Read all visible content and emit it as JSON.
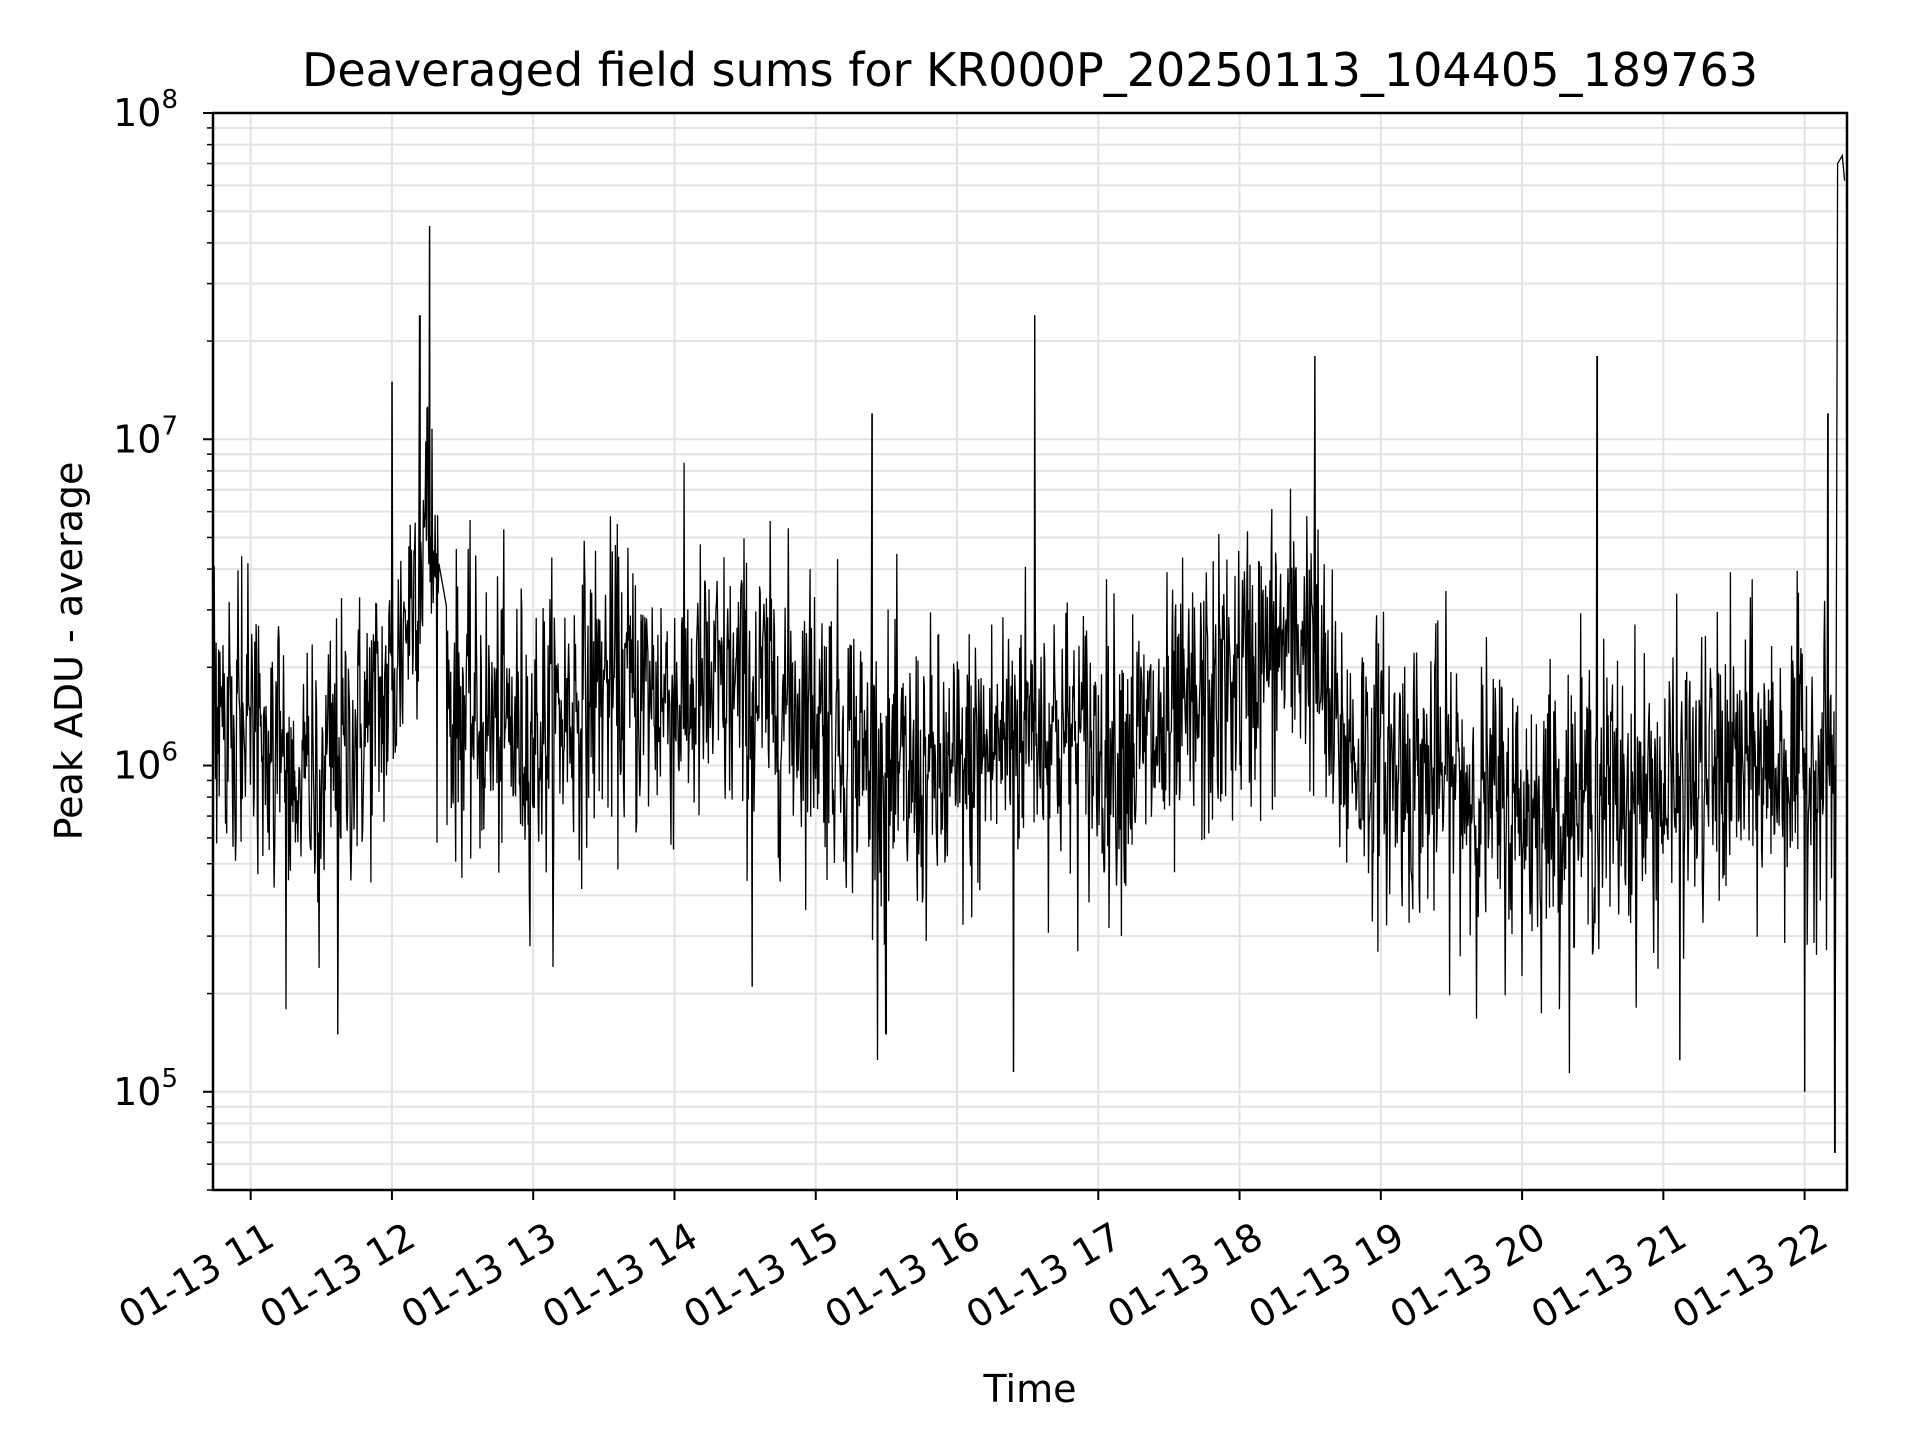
{
  "chart_data": {
    "type": "line",
    "title": "Deaveraged field sums for KR000P_20250113_104405_189763",
    "xlabel": "Time",
    "ylabel": "Peak ADU - average",
    "y_scale": "log",
    "ylim": [
      50000,
      100000000
    ],
    "y_ticks": [
      {
        "value": 100000000,
        "base": "10",
        "exp": "8"
      },
      {
        "value": 10000000,
        "base": "10",
        "exp": "7"
      },
      {
        "value": 1000000,
        "base": "10",
        "exp": "6"
      },
      {
        "value": 100000,
        "base": "10",
        "exp": "5"
      }
    ],
    "xlim": [
      "2025-01-13 10:44",
      "2025-01-13 22:18"
    ],
    "x_ticks": [
      {
        "value": "2025-01-13 11:00",
        "label": "01-13 11"
      },
      {
        "value": "2025-01-13 12:00",
        "label": "01-13 12"
      },
      {
        "value": "2025-01-13 13:00",
        "label": "01-13 13"
      },
      {
        "value": "2025-01-13 14:00",
        "label": "01-13 14"
      },
      {
        "value": "2025-01-13 15:00",
        "label": "01-13 15"
      },
      {
        "value": "2025-01-13 16:00",
        "label": "01-13 16"
      },
      {
        "value": "2025-01-13 17:00",
        "label": "01-13 17"
      },
      {
        "value": "2025-01-13 18:00",
        "label": "01-13 18"
      },
      {
        "value": "2025-01-13 19:00",
        "label": "01-13 19"
      },
      {
        "value": "2025-01-13 20:00",
        "label": "01-13 20"
      },
      {
        "value": "2025-01-13 21:00",
        "label": "01-13 21"
      },
      {
        "value": "2025-01-13 22:00",
        "label": "01-13 22"
      }
    ],
    "grid": true,
    "series": [
      {
        "color": "#000000",
        "level_points": [
          {
            "x": "2025-01-13 10:44",
            "y": 1300000
          },
          {
            "x": "2025-01-13 11:00",
            "y": 1200000
          },
          {
            "x": "2025-01-13 11:20",
            "y": 900000
          },
          {
            "x": "2025-01-13 11:40",
            "y": 1100000
          },
          {
            "x": "2025-01-13 12:00",
            "y": 1700000
          },
          {
            "x": "2025-01-13 12:15",
            "y": 6000000
          },
          {
            "x": "2025-01-13 12:25",
            "y": 1500000
          },
          {
            "x": "2025-01-13 13:00",
            "y": 1200000
          },
          {
            "x": "2025-01-13 13:30",
            "y": 1800000
          },
          {
            "x": "2025-01-13 14:00",
            "y": 1600000
          },
          {
            "x": "2025-01-13 14:30",
            "y": 1700000
          },
          {
            "x": "2025-01-13 15:00",
            "y": 1500000
          },
          {
            "x": "2025-01-13 15:30",
            "y": 900000
          },
          {
            "x": "2025-01-13 16:00",
            "y": 900000
          },
          {
            "x": "2025-01-13 16:30",
            "y": 1400000
          },
          {
            "x": "2025-01-13 17:00",
            "y": 1100000
          },
          {
            "x": "2025-01-13 17:30",
            "y": 1200000
          },
          {
            "x": "2025-01-13 18:00",
            "y": 1900000
          },
          {
            "x": "2025-01-13 18:30",
            "y": 2600000
          },
          {
            "x": "2025-01-13 18:40",
            "y": 1200000
          },
          {
            "x": "2025-01-13 19:00",
            "y": 1000000
          },
          {
            "x": "2025-01-13 19:30",
            "y": 900000
          },
          {
            "x": "2025-01-13 20:00",
            "y": 700000
          },
          {
            "x": "2025-01-13 20:30",
            "y": 800000
          },
          {
            "x": "2025-01-13 21:00",
            "y": 800000
          },
          {
            "x": "2025-01-13 21:30",
            "y": 1000000
          },
          {
            "x": "2025-01-13 22:00",
            "y": 1000000
          },
          {
            "x": "2025-01-13 22:13",
            "y": 1000000
          }
        ],
        "spikes": [
          {
            "x": "2025-01-13 12:00",
            "y": 15000000
          },
          {
            "x": "2025-01-13 12:16",
            "y": 45000000
          },
          {
            "x": "2025-01-13 12:12",
            "y": 24000000
          },
          {
            "x": "2025-01-13 15:24",
            "y": 12000000
          },
          {
            "x": "2025-01-13 16:33",
            "y": 24000000
          },
          {
            "x": "2025-01-13 18:32",
            "y": 18000000
          },
          {
            "x": "2025-01-13 20:32",
            "y": 18000000
          },
          {
            "x": "2025-01-13 22:10",
            "y": 12000000
          },
          {
            "x": "2025-01-13 11:37",
            "y": 150000
          },
          {
            "x": "2025-01-13 15:30",
            "y": 150000
          },
          {
            "x": "2025-01-13 16:24",
            "y": 115000
          },
          {
            "x": "2025-01-13 22:00",
            "y": 100000
          },
          {
            "x": "2025-01-13 22:13",
            "y": 65000
          },
          {
            "x": "2025-01-13 14:33",
            "y": 210000
          },
          {
            "x": "2025-01-13 21:07",
            "y": 125000
          }
        ],
        "end_segment": [
          {
            "x": "2025-01-13 22:13",
            "y": 140000
          },
          {
            "x": "2025-01-13 22:14",
            "y": 70000000
          },
          {
            "x": "2025-01-13 22:16",
            "y": 74000000
          },
          {
            "x": "2025-01-13 22:17",
            "y": 62000000
          }
        ]
      }
    ]
  }
}
